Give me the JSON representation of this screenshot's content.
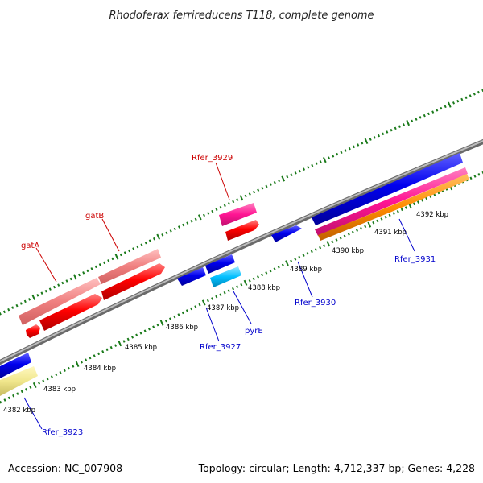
{
  "title": "Rhodoferax ferrireducens T118, complete genome",
  "accession": "Accession: NC_007908",
  "topology": "Topology: circular; Length: 4,712,337 bp; Genes: 4,228",
  "colors": {
    "backbone": "#8c8c8c",
    "tick": "#1a7a1a",
    "label_forward": "#cc0000",
    "label_reverse": "#0000cc",
    "gene_red": "#ff0000",
    "gene_pink": "#f08080",
    "gene_magenta": "#ff1493",
    "gene_blue": "#0000ee",
    "gene_cyan": "#00bfff",
    "gene_orange": "#ff8c00",
    "gene_khaki": "#f0e68c"
  },
  "scale_labels": [
    "4382 kbp",
    "4383 kbp",
    "4384 kbp",
    "4385 kbp",
    "4386 kbp",
    "4387 kbp",
    "4388 kbp",
    "4389 kbp",
    "4390 kbp",
    "4391 kbp",
    "4392 kbp"
  ],
  "gene_labels": {
    "gatA": "gatA",
    "gatB": "gatB",
    "rfer3929": "Rfer_3929",
    "rfer3923": "Rfer_3923",
    "rfer3927": "Rfer_3927",
    "pyrE": "pyrE",
    "rfer3930": "Rfer_3930",
    "rfer3931": "Rfer_3931"
  }
}
